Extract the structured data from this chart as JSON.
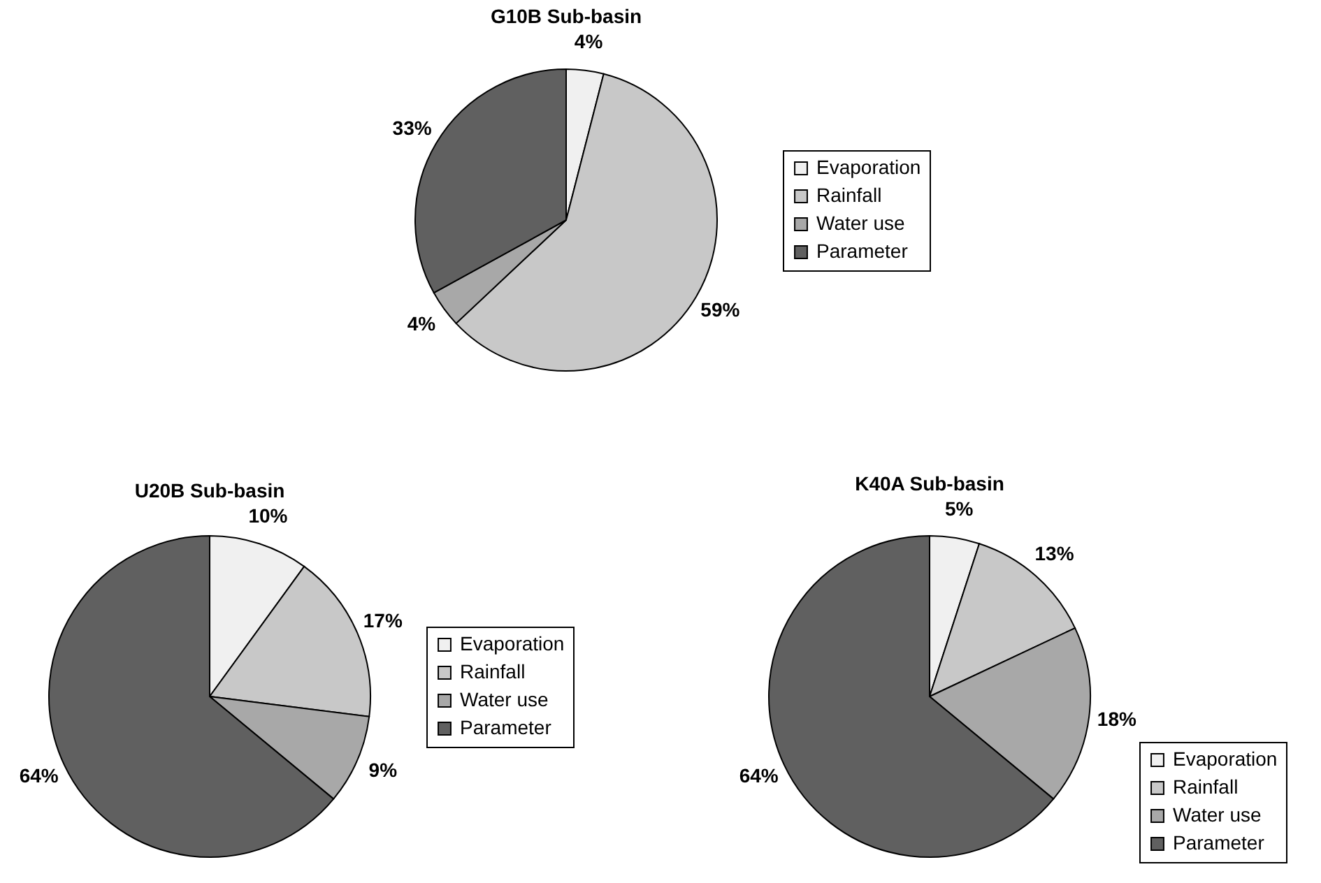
{
  "chart_data": [
    {
      "type": "pie",
      "title": "G10B Sub-basin",
      "categories": [
        "Evaporation",
        "Rainfall",
        "Water use",
        "Parameter"
      ],
      "values": [
        4,
        59,
        4,
        33
      ],
      "value_labels": [
        "4%",
        "59%",
        "4%",
        "33%"
      ],
      "colors": [
        "#f0f0f0",
        "#c8c8c8",
        "#a8a8a8",
        "#606060"
      ],
      "legend": "right"
    },
    {
      "type": "pie",
      "title": "U20B Sub-basin",
      "categories": [
        "Evaporation",
        "Rainfall",
        "Water use",
        "Parameter"
      ],
      "values": [
        10,
        17,
        9,
        64
      ],
      "value_labels": [
        "10%",
        "17%",
        "9%",
        "64%"
      ],
      "colors": [
        "#f0f0f0",
        "#c8c8c8",
        "#a8a8a8",
        "#606060"
      ],
      "legend": "right"
    },
    {
      "type": "pie",
      "title": "K40A Sub-basin",
      "categories": [
        "Evaporation",
        "Rainfall",
        "Water use",
        "Parameter"
      ],
      "values": [
        5,
        13,
        18,
        64
      ],
      "value_labels": [
        "5%",
        "13%",
        "18%",
        "64%"
      ],
      "colors": [
        "#f0f0f0",
        "#c8c8c8",
        "#a8a8a8",
        "#606060"
      ],
      "legend": "bottom right"
    }
  ]
}
